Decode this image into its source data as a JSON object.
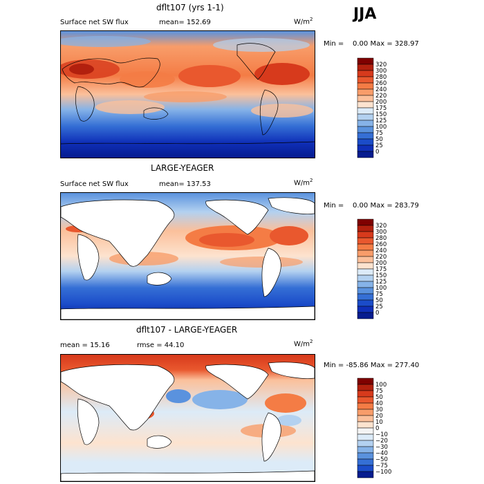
{
  "season": "JJA",
  "panels": [
    {
      "title": "dflt107 (yrs 1-1)",
      "subtitle_left": "Surface net SW flux",
      "subtitle_mid": "mean= 152.69",
      "unit_base": "W/m",
      "unit_exp": "2",
      "minmax": "Min =    0.00 Max = 328.97",
      "colorbar_labels": [
        "320",
        "300",
        "280",
        "260",
        "240",
        "220",
        "200",
        "175",
        "150",
        "125",
        "100",
        "75",
        "50",
        "25",
        "0"
      ],
      "colorbar_colors": [
        "#7f0000",
        "#b2200e",
        "#d73a1c",
        "#e9582e",
        "#f47c45",
        "#f89d6a",
        "#fbc09b",
        "#fde3cf",
        "#dcebf8",
        "#b3d1f0",
        "#86b3e8",
        "#5a92de",
        "#356fd5",
        "#1b4cc9",
        "#0f2fb8",
        "#061c8f"
      ],
      "field_mean": 152.69,
      "field_min": 0.0,
      "field_max": 328.97
    },
    {
      "title": "LARGE-YEAGER",
      "subtitle_left": "Surface net SW flux",
      "subtitle_mid": "mean= 137.53",
      "unit_base": "W/m",
      "unit_exp": "2",
      "minmax": "Min =    0.00 Max = 283.79",
      "colorbar_labels": [
        "320",
        "300",
        "280",
        "260",
        "240",
        "220",
        "200",
        "175",
        "150",
        "125",
        "100",
        "75",
        "50",
        "25",
        "0"
      ],
      "colorbar_colors": [
        "#7f0000",
        "#b2200e",
        "#d73a1c",
        "#e9582e",
        "#f47c45",
        "#f89d6a",
        "#fbc09b",
        "#fde3cf",
        "#dcebf8",
        "#b3d1f0",
        "#86b3e8",
        "#5a92de",
        "#356fd5",
        "#1b4cc9",
        "#0f2fb8",
        "#061c8f"
      ],
      "field_mean": 137.53,
      "field_min": 0.0,
      "field_max": 283.79
    },
    {
      "title": "dflt107 - LARGE-YEAGER",
      "subtitle_left": "mean =   15.16",
      "subtitle_mid": "rmse =   44.10",
      "unit_base": "W/m",
      "unit_exp": "2",
      "minmax": "Min = -85.86 Max = 277.40",
      "colorbar_labels": [
        "100",
        "75",
        "50",
        "40",
        "30",
        "20",
        "10",
        "0",
        "−10",
        "−20",
        "−30",
        "−40",
        "−50",
        "−75",
        "−100"
      ],
      "colorbar_colors": [
        "#7f0000",
        "#b2200e",
        "#d73a1c",
        "#e9582e",
        "#f47c45",
        "#f89d6a",
        "#fbc09b",
        "#fde3cf",
        "#f4f4f4",
        "#dcebf8",
        "#b3d1f0",
        "#86b3e8",
        "#5a92de",
        "#356fd5",
        "#1b4cc9",
        "#061c8f"
      ],
      "field_mean": 15.16,
      "field_rmse": 44.1,
      "field_min": -85.86,
      "field_max": 277.4
    }
  ],
  "chart_data": [
    {
      "type": "heatmap",
      "title": "dflt107 (yrs 1-1)",
      "variable": "Surface net SW flux",
      "units": "W/m2",
      "season": "JJA",
      "mean": 152.69,
      "min": 0.0,
      "max": 328.97,
      "colorbar_levels": [
        0,
        25,
        50,
        75,
        100,
        125,
        150,
        175,
        200,
        220,
        240,
        260,
        280,
        300,
        320
      ]
    },
    {
      "type": "heatmap",
      "title": "LARGE-YEAGER",
      "variable": "Surface net SW flux",
      "units": "W/m2",
      "season": "JJA",
      "mean": 137.53,
      "min": 0.0,
      "max": 283.79,
      "colorbar_levels": [
        0,
        25,
        50,
        75,
        100,
        125,
        150,
        175,
        200,
        220,
        240,
        260,
        280,
        300,
        320
      ]
    },
    {
      "type": "heatmap",
      "title": "dflt107 - LARGE-YEAGER",
      "units": "W/m2",
      "season": "JJA",
      "mean": 15.16,
      "rmse": 44.1,
      "min": -85.86,
      "max": 277.4,
      "colorbar_levels": [
        -100,
        -75,
        -50,
        -40,
        -30,
        -20,
        -10,
        0,
        10,
        20,
        30,
        40,
        50,
        75,
        100
      ]
    }
  ]
}
